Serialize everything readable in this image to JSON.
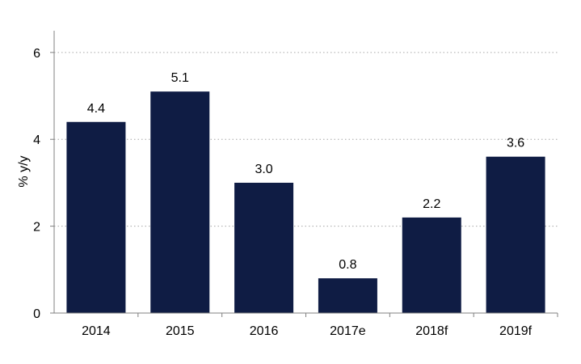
{
  "chart_data": {
    "type": "bar",
    "title": "",
    "xlabel": "",
    "ylabel": "% y/y",
    "categories": [
      "2014",
      "2015",
      "2016",
      "2017e",
      "2018f",
      "2019f"
    ],
    "values": [
      4.4,
      5.1,
      3.0,
      0.8,
      2.2,
      3.6
    ],
    "value_labels": [
      "4.4",
      "5.1",
      "3.0",
      "0.8",
      "2.2",
      "3.6"
    ],
    "ylim": [
      0,
      6.5
    ],
    "yticks": [
      0,
      2,
      4,
      6
    ],
    "grid": true,
    "legend": "none",
    "bar_color": "#0f1c44"
  }
}
